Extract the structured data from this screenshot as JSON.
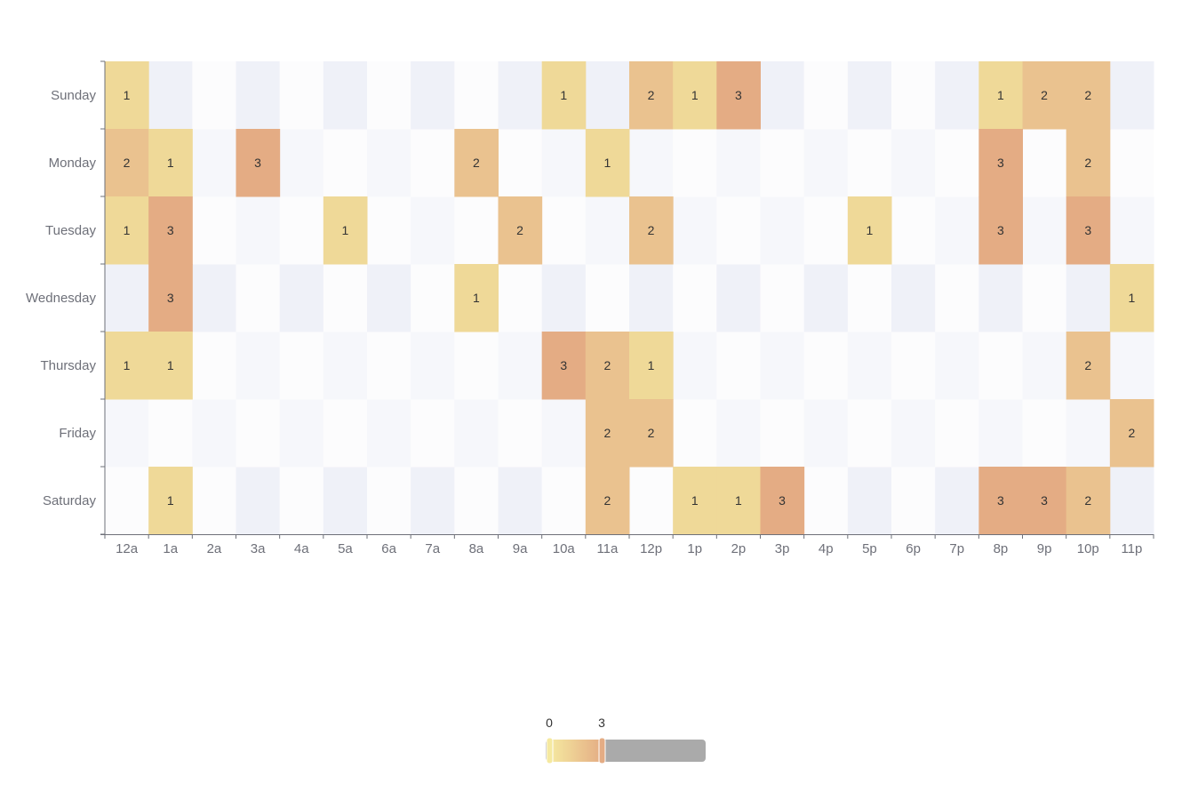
{
  "chart_data": {
    "type": "heatmap",
    "title": "",
    "xlabel": "",
    "ylabel": "",
    "x_categories": [
      "12a",
      "1a",
      "2a",
      "3a",
      "4a",
      "5a",
      "6a",
      "7a",
      "8a",
      "9a",
      "10a",
      "11a",
      "12p",
      "1p",
      "2p",
      "3p",
      "4p",
      "5p",
      "6p",
      "7p",
      "8p",
      "9p",
      "10p",
      "11p"
    ],
    "y_categories": [
      "Saturday",
      "Friday",
      "Thursday",
      "Wednesday",
      "Tuesday",
      "Monday",
      "Sunday"
    ],
    "values": [
      {
        "day": "Sunday",
        "hour": "12a",
        "value": 1
      },
      {
        "day": "Sunday",
        "hour": "10a",
        "value": 1
      },
      {
        "day": "Sunday",
        "hour": "12p",
        "value": 2
      },
      {
        "day": "Sunday",
        "hour": "1p",
        "value": 1
      },
      {
        "day": "Sunday",
        "hour": "2p",
        "value": 3
      },
      {
        "day": "Sunday",
        "hour": "8p",
        "value": 1
      },
      {
        "day": "Sunday",
        "hour": "9p",
        "value": 2
      },
      {
        "day": "Sunday",
        "hour": "10p",
        "value": 2
      },
      {
        "day": "Monday",
        "hour": "12a",
        "value": 2
      },
      {
        "day": "Monday",
        "hour": "1a",
        "value": 1
      },
      {
        "day": "Monday",
        "hour": "3a",
        "value": 3
      },
      {
        "day": "Monday",
        "hour": "8a",
        "value": 2
      },
      {
        "day": "Monday",
        "hour": "11a",
        "value": 1
      },
      {
        "day": "Monday",
        "hour": "8p",
        "value": 3
      },
      {
        "day": "Monday",
        "hour": "10p",
        "value": 2
      },
      {
        "day": "Tuesday",
        "hour": "12a",
        "value": 1
      },
      {
        "day": "Tuesday",
        "hour": "1a",
        "value": 3
      },
      {
        "day": "Tuesday",
        "hour": "5a",
        "value": 1
      },
      {
        "day": "Tuesday",
        "hour": "9a",
        "value": 2
      },
      {
        "day": "Tuesday",
        "hour": "12p",
        "value": 2
      },
      {
        "day": "Tuesday",
        "hour": "5p",
        "value": 1
      },
      {
        "day": "Tuesday",
        "hour": "8p",
        "value": 3
      },
      {
        "day": "Tuesday",
        "hour": "10p",
        "value": 3
      },
      {
        "day": "Wednesday",
        "hour": "1a",
        "value": 3
      },
      {
        "day": "Wednesday",
        "hour": "8a",
        "value": 1
      },
      {
        "day": "Wednesday",
        "hour": "11p",
        "value": 1
      },
      {
        "day": "Thursday",
        "hour": "12a",
        "value": 1
      },
      {
        "day": "Thursday",
        "hour": "1a",
        "value": 1
      },
      {
        "day": "Thursday",
        "hour": "10a",
        "value": 3
      },
      {
        "day": "Thursday",
        "hour": "11a",
        "value": 2
      },
      {
        "day": "Thursday",
        "hour": "12p",
        "value": 1
      },
      {
        "day": "Thursday",
        "hour": "10p",
        "value": 2
      },
      {
        "day": "Friday",
        "hour": "11a",
        "value": 2
      },
      {
        "day": "Friday",
        "hour": "12p",
        "value": 2
      },
      {
        "day": "Friday",
        "hour": "11p",
        "value": 2
      },
      {
        "day": "Saturday",
        "hour": "1a",
        "value": 1
      },
      {
        "day": "Saturday",
        "hour": "11a",
        "value": 2
      },
      {
        "day": "Saturday",
        "hour": "1p",
        "value": 1
      },
      {
        "day": "Saturday",
        "hour": "2p",
        "value": 1
      },
      {
        "day": "Saturday",
        "hour": "3p",
        "value": 3
      },
      {
        "day": "Saturday",
        "hour": "8p",
        "value": 3
      },
      {
        "day": "Saturday",
        "hour": "9p",
        "value": 3
      },
      {
        "day": "Saturday",
        "hour": "10p",
        "value": 2
      }
    ],
    "color_scale": {
      "min": 0,
      "max": 3,
      "colors": {
        "1": "#efd998",
        "2": "#eac28f",
        "3": "#e4ac84"
      },
      "band_colors": [
        "#f6f7fb",
        "#eff1f8",
        "#fcfcfd"
      ]
    },
    "visual_map": {
      "min_label": "0",
      "max_label": "3",
      "track_color": "#aaaaaa",
      "gradient_start": "#f5e9a0",
      "gradient_end": "#e4ac84"
    },
    "grid": true,
    "legend": "bottom-center"
  }
}
